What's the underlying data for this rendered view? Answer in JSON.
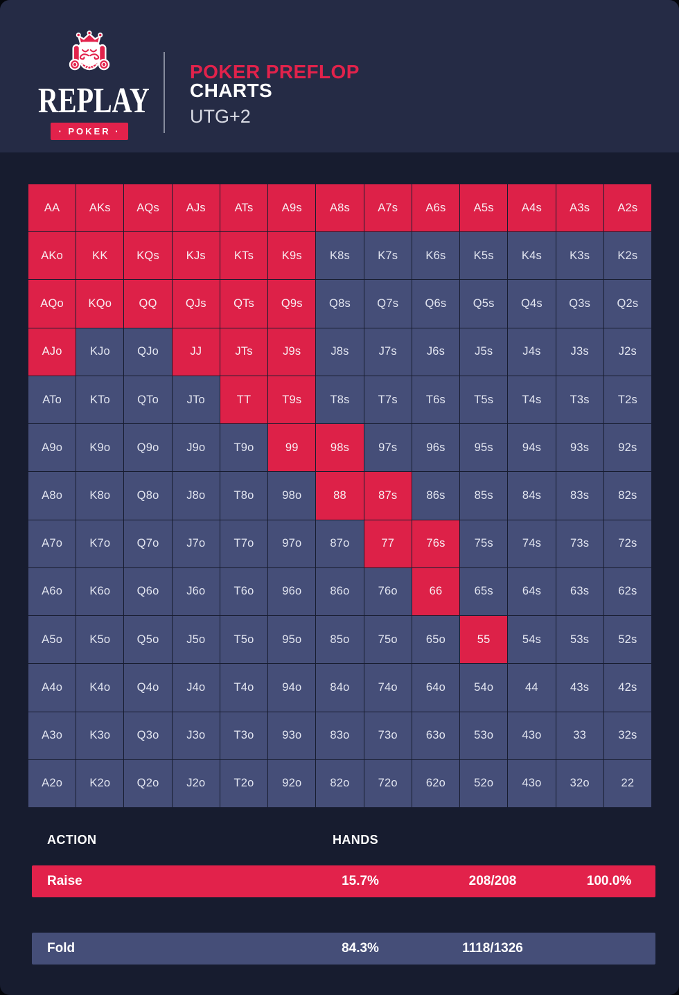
{
  "header": {
    "brand": "REPLAY",
    "brand_sub": "· POKER ·",
    "title_line1": "POKER PREFLOP",
    "title_line2": "CHARTS",
    "position": "UTG+2"
  },
  "colors": {
    "raise": "#e2224b",
    "fold": "#454e78",
    "background": "#171c2f",
    "header_background": "#252b45",
    "text_light": "#ffffff"
  },
  "chart_data": {
    "type": "heatmap",
    "title": "Poker Preflop Charts",
    "subtitle": "UTG+2",
    "legend": [
      {
        "label": "Raise",
        "color": "#e2224b"
      },
      {
        "label": "Fold",
        "color": "#454e78"
      }
    ],
    "rows": [
      {
        "hands": [
          "AA",
          "AKs",
          "AQs",
          "AJs",
          "ATs",
          "A9s",
          "A8s",
          "A7s",
          "A6s",
          "A5s",
          "A4s",
          "A3s",
          "A2s"
        ],
        "actions": "RRRRRRRRRRRRR"
      },
      {
        "hands": [
          "AKo",
          "KK",
          "KQs",
          "KJs",
          "KTs",
          "K9s",
          "K8s",
          "K7s",
          "K6s",
          "K5s",
          "K4s",
          "K3s",
          "K2s"
        ],
        "actions": "RRRRRRFFFFFFF"
      },
      {
        "hands": [
          "AQo",
          "KQo",
          "QQ",
          "QJs",
          "QTs",
          "Q9s",
          "Q8s",
          "Q7s",
          "Q6s",
          "Q5s",
          "Q4s",
          "Q3s",
          "Q2s"
        ],
        "actions": "RRRRRRFFFFFFF"
      },
      {
        "hands": [
          "AJo",
          "KJo",
          "QJo",
          "JJ",
          "JTs",
          "J9s",
          "J8s",
          "J7s",
          "J6s",
          "J5s",
          "J4s",
          "J3s",
          "J2s"
        ],
        "actions": "RFFRRRFFFFFFF"
      },
      {
        "hands": [
          "ATo",
          "KTo",
          "QTo",
          "JTo",
          "TT",
          "T9s",
          "T8s",
          "T7s",
          "T6s",
          "T5s",
          "T4s",
          "T3s",
          "T2s"
        ],
        "actions": "FFFFRRFFFFFFF"
      },
      {
        "hands": [
          "A9o",
          "K9o",
          "Q9o",
          "J9o",
          "T9o",
          "99",
          "98s",
          "97s",
          "96s",
          "95s",
          "94s",
          "93s",
          "92s"
        ],
        "actions": "FFFFFRRFFFFFF"
      },
      {
        "hands": [
          "A8o",
          "K8o",
          "Q8o",
          "J8o",
          "T8o",
          "98o",
          "88",
          "87s",
          "86s",
          "85s",
          "84s",
          "83s",
          "82s"
        ],
        "actions": "FFFFFFRRFFFFF"
      },
      {
        "hands": [
          "A7o",
          "K7o",
          "Q7o",
          "J7o",
          "T7o",
          "97o",
          "87o",
          "77",
          "76s",
          "75s",
          "74s",
          "73s",
          "72s"
        ],
        "actions": "FFFFFFFRRFFFF"
      },
      {
        "hands": [
          "A6o",
          "K6o",
          "Q6o",
          "J6o",
          "T6o",
          "96o",
          "86o",
          "76o",
          "66",
          "65s",
          "64s",
          "63s",
          "62s"
        ],
        "actions": "FFFFFFFFRFFFF"
      },
      {
        "hands": [
          "A5o",
          "K5o",
          "Q5o",
          "J5o",
          "T5o",
          "95o",
          "85o",
          "75o",
          "65o",
          "55",
          "54s",
          "53s",
          "52s"
        ],
        "actions": "FFFFFFFFFRFFF"
      },
      {
        "hands": [
          "A4o",
          "K4o",
          "Q4o",
          "J4o",
          "T4o",
          "94o",
          "84o",
          "74o",
          "64o",
          "54o",
          "44",
          "43s",
          "42s"
        ],
        "actions": "FFFFFFFFFFFFF"
      },
      {
        "hands": [
          "A3o",
          "K3o",
          "Q3o",
          "J3o",
          "T3o",
          "93o",
          "83o",
          "73o",
          "63o",
          "53o",
          "43o",
          "33",
          "32s"
        ],
        "actions": "FFFFFFFFFFFFF"
      },
      {
        "hands": [
          "A2o",
          "K2o",
          "Q2o",
          "J2o",
          "T2o",
          "92o",
          "82o",
          "72o",
          "62o",
          "52o",
          "43o",
          "32o",
          "22"
        ],
        "actions": "FFFFFFFFFFFFF"
      }
    ],
    "summary": [
      {
        "action": "Raise",
        "percent": "15.7%",
        "fraction": "208/208",
        "of_range": "100.0%"
      },
      {
        "action": "Fold",
        "percent": "84.3%",
        "fraction": "1118/1326",
        "of_range": ""
      }
    ]
  },
  "summary_section": {
    "action_header": "ACTION",
    "hands_header": "HANDS",
    "raise": {
      "label": "Raise",
      "percent": "15.7%",
      "fraction": "208/208",
      "of_range": "100.0%"
    },
    "fold": {
      "label": "Fold",
      "percent": "84.3%",
      "fraction": "1118/1326"
    }
  }
}
